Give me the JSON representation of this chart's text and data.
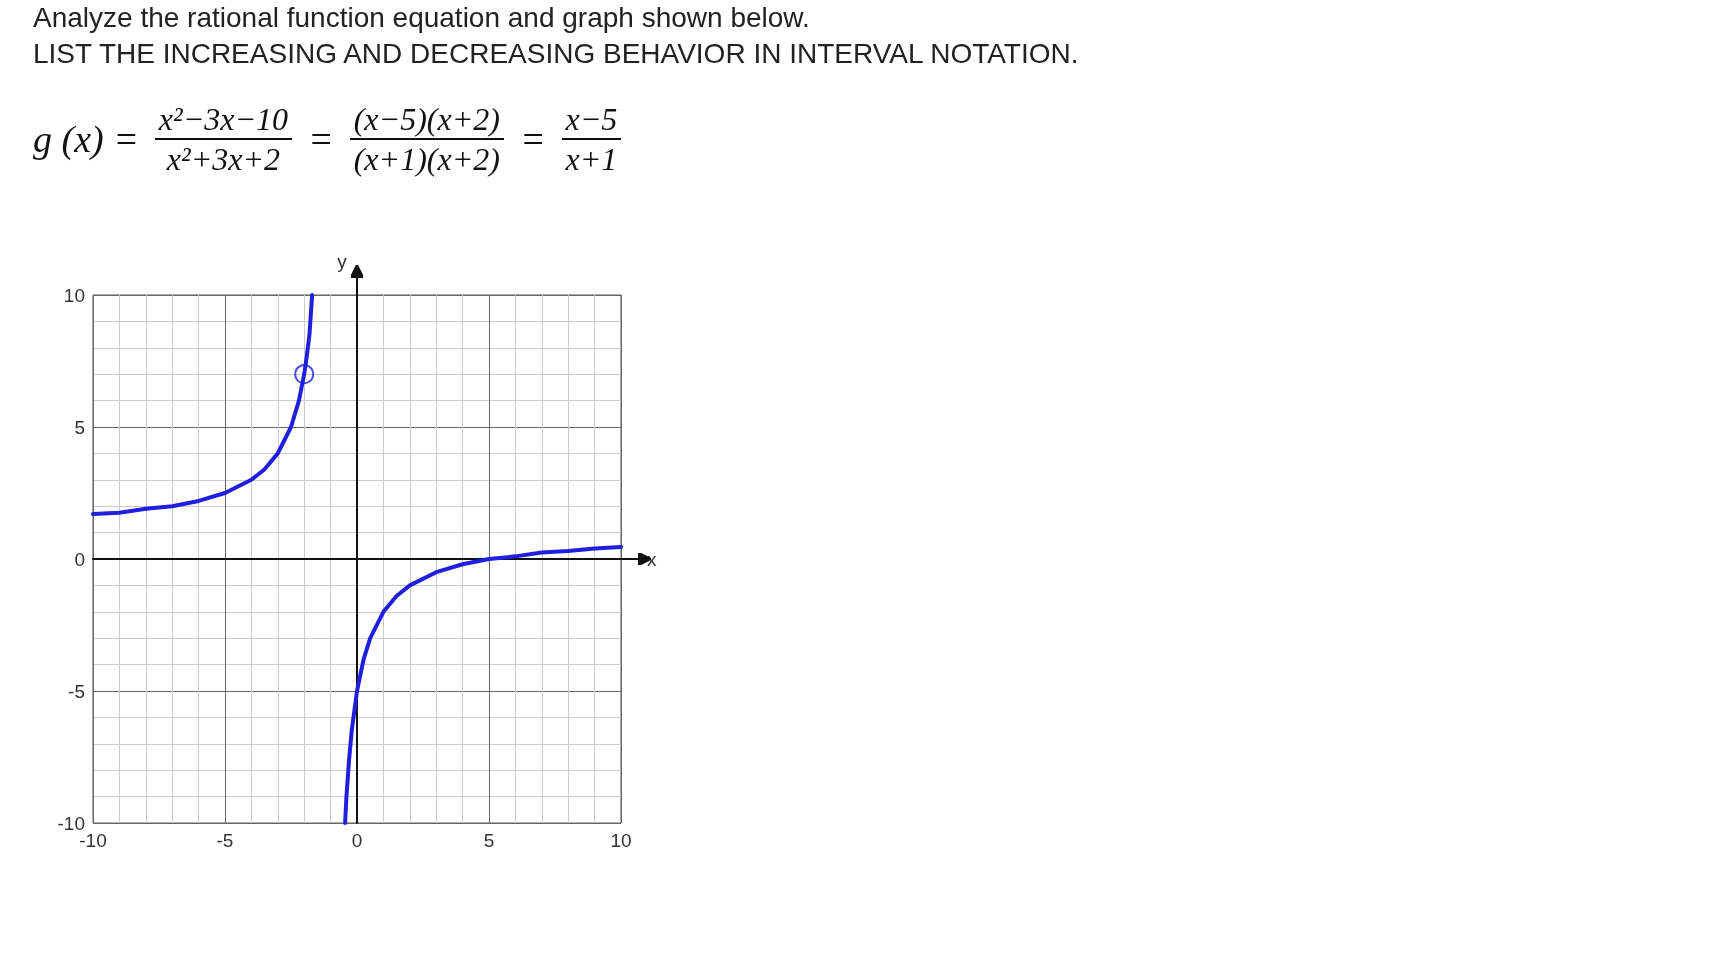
{
  "chart_data": {
    "type": "line",
    "title": "Analyze the rational function equation and graph shown below.",
    "subtitle": "LIST THE INCREASING AND DECREASING BEHAVIOR IN INTERVAL NOTATION.",
    "annotations": [
      "g (x) =",
      "x²−3x−10",
      "x²+3x+2",
      "=",
      "(x−5)(x+2)",
      "(x+1)(x+2)",
      "=",
      "x−5",
      "x+1"
    ],
    "xlabel": "x",
    "ylabel": "y",
    "xlim": [
      -10,
      10
    ],
    "ylim": [
      -10,
      10
    ],
    "xticks": [
      -10,
      -5,
      0,
      5,
      10
    ],
    "yticks": [
      -10,
      -5,
      0,
      5,
      10
    ],
    "grid": true,
    "marker": "none",
    "line_style": "solid",
    "series": [
      {
        "color": "#1f1fe0",
        "x": [
          -10,
          -9,
          -8,
          -7,
          -6,
          -5,
          -4,
          -3.5,
          -3,
          -2.5,
          -2.2,
          -2,
          -1.9,
          -1.8,
          -1.7,
          -1.2,
          -0.45,
          -0.4,
          -0.3,
          -0.2,
          0,
          0.25,
          0.5,
          1,
          1.5,
          2,
          3,
          4,
          5,
          6,
          7,
          8,
          9,
          10
        ],
        "values": [
          1.7,
          1.75,
          1.9,
          2,
          2.2,
          2.5,
          3,
          3.4,
          4,
          5,
          6,
          7,
          7.7,
          8.5,
          10,
          null,
          -10,
          -9,
          -7.6,
          -6.5,
          -5,
          -3.8,
          -3,
          -2,
          -1.4,
          -1,
          -0.5,
          -0.2,
          0,
          0.1,
          0.25,
          0.3,
          0.4,
          0.45
        ]
      },
      {
        "type": "scatter",
        "marker": "circle",
        "color": "#1f1fe0",
        "x": [
          -2
        ],
        "values": [
          7
        ]
      }
    ]
  }
}
